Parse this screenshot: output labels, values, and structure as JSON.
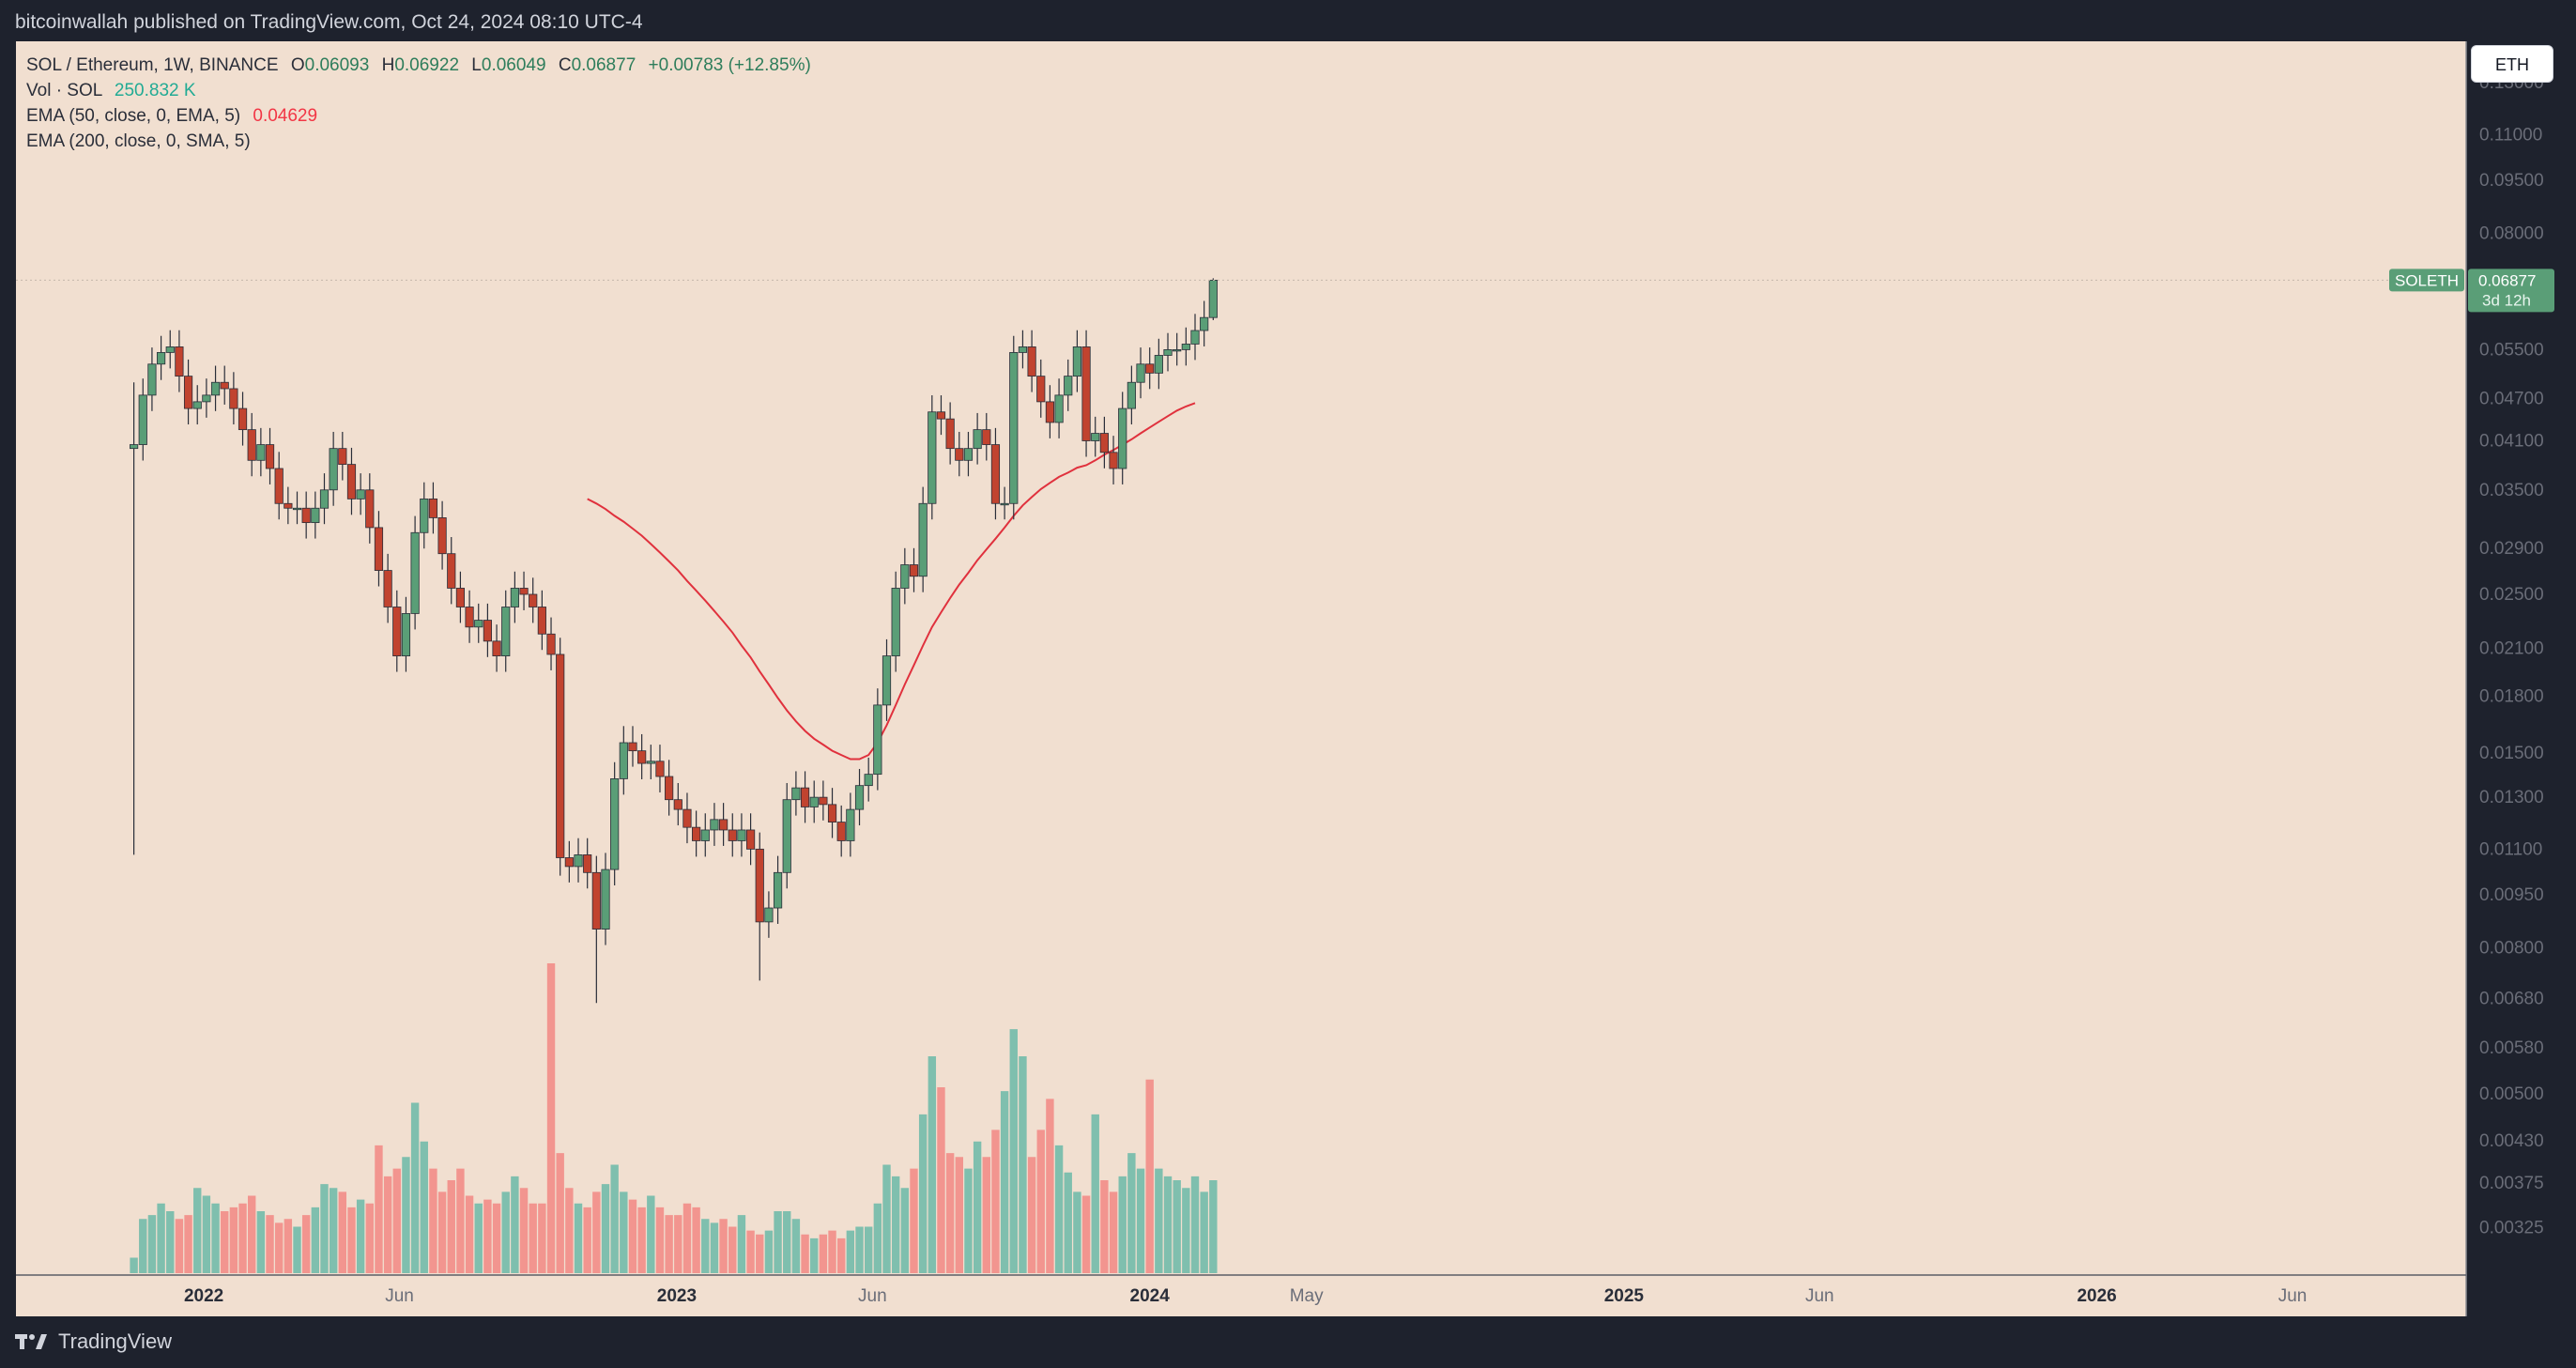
{
  "header": {
    "publisher_text": "bitcoinwallah published on TradingView.com, Oct 24, 2024 08:10 UTC-4"
  },
  "footer": {
    "brand": "TradingView"
  },
  "legend": {
    "symbol": "SOL / Ethereum, 1W, BINANCE",
    "open_label": "O",
    "open": "0.06093",
    "high_label": "H",
    "high": "0.06922",
    "low_label": "L",
    "low": "0.06049",
    "close_label": "C",
    "close": "0.06877",
    "change": "+0.00783 (+12.85%)",
    "vol_label": "Vol · SOL",
    "vol_value": "250.832 K",
    "ema50_label": "EMA (50, close, 0, EMA, 5)",
    "ema50_value": "0.04629",
    "ema200_label": "EMA (200, close, 0, SMA, 5)"
  },
  "currency_button": "ETH",
  "price_tag": {
    "symbol": "SOLETH",
    "price": "0.06877",
    "countdown": "3d 12h"
  },
  "colors": {
    "up": "#5a9e77",
    "down": "#c1432f",
    "vol_up": "#7fbfae",
    "vol_down": "#f2958f",
    "ema": "#e0313d",
    "background": "#f1dfd0",
    "price_tag_bg": "#5a9e77"
  },
  "chart_data": {
    "type": "candlestick",
    "title": "SOL / Ethereum, 1W, BINANCE",
    "y_scale": "log",
    "ylim": [
      0.0029,
      0.145
    ],
    "y_ticks": [
      "0.13000",
      "0.11000",
      "0.09500",
      "0.08000",
      "0.05500",
      "0.04700",
      "0.04100",
      "0.03500",
      "0.02900",
      "0.02500",
      "0.02100",
      "0.01800",
      "0.01500",
      "0.01300",
      "0.01100",
      "0.00950",
      "0.00800",
      "0.00680",
      "0.00580",
      "0.00500",
      "0.00430",
      "0.00375",
      "0.00325"
    ],
    "x_ticks": [
      "2022",
      "Jun",
      "2023",
      "Jun",
      "2024",
      "May",
      "2025",
      "Jun",
      "2026",
      "Jun"
    ],
    "x_tick_dates": [
      "2022-01-01",
      "2022-06-01",
      "2023-01-01",
      "2023-06-01",
      "2024-01-01",
      "2024-05-01",
      "2025-01-01",
      "2025-06-01",
      "2026-01-01",
      "2026-06-01"
    ],
    "xlim": [
      "2021-08-09",
      "2026-10-13"
    ],
    "interval": "1W",
    "first_bar_date": "2021-11-08",
    "closes": [
      0.0405,
      0.0475,
      0.0525,
      0.0545,
      0.0555,
      0.0505,
      0.0455,
      0.0465,
      0.0475,
      0.0495,
      0.0485,
      0.0455,
      0.0425,
      0.0385,
      0.0405,
      0.0375,
      0.0335,
      0.033,
      0.033,
      0.0315,
      0.033,
      0.035,
      0.04,
      0.038,
      0.034,
      0.035,
      0.031,
      0.027,
      0.024,
      0.0205,
      0.0235,
      0.0305,
      0.034,
      0.032,
      0.0285,
      0.0255,
      0.024,
      0.0225,
      0.023,
      0.0215,
      0.0205,
      0.024,
      0.0255,
      0.025,
      0.024,
      0.022,
      0.0206,
      0.0107,
      0.0104,
      0.0108,
      0.0102,
      0.0085,
      0.0103,
      0.0138,
      0.0155,
      0.0151,
      0.0145,
      0.0146,
      0.0139,
      0.0129,
      0.0125,
      0.0118,
      0.0113,
      0.0117,
      0.0121,
      0.0117,
      0.0113,
      0.0117,
      0.011,
      0.0087,
      0.0091,
      0.0102,
      0.0129,
      0.0134,
      0.0126,
      0.013,
      0.0127,
      0.012,
      0.0113,
      0.0125,
      0.0135,
      0.014,
      0.0175,
      0.0205,
      0.0255,
      0.0275,
      0.0265,
      0.0335,
      0.045,
      0.044,
      0.04,
      0.0385,
      0.04,
      0.0425,
      0.0405,
      0.0335,
      0.0335,
      0.0545,
      0.0555,
      0.0505,
      0.0465,
      0.0435,
      0.0475,
      0.0505,
      0.0555,
      0.041,
      0.042,
      0.0395,
      0.0375,
      0.0455,
      0.0495,
      0.0525,
      0.051,
      0.054,
      0.055,
      0.055,
      0.056,
      0.0585,
      0.061,
      0.0688
    ],
    "ema50": [
      null,
      null,
      null,
      null,
      null,
      null,
      null,
      null,
      null,
      null,
      null,
      null,
      null,
      null,
      null,
      null,
      null,
      null,
      null,
      null,
      null,
      null,
      null,
      null,
      null,
      null,
      null,
      null,
      null,
      null,
      null,
      null,
      null,
      null,
      null,
      null,
      null,
      null,
      null,
      null,
      null,
      null,
      null,
      null,
      null,
      null,
      null,
      null,
      null,
      null,
      0.034,
      0.0335,
      0.0329,
      0.0322,
      0.0316,
      0.0309,
      0.0302,
      0.0294,
      0.0286,
      0.0278,
      0.027,
      0.0261,
      0.0253,
      0.0245,
      0.0237,
      0.0229,
      0.0221,
      0.0212,
      0.0204,
      0.0195,
      0.0187,
      0.0179,
      0.0172,
      0.0166,
      0.0161,
      0.0157,
      0.0154,
      0.0151,
      0.0149,
      0.0147,
      0.0147,
      0.0149,
      0.0155,
      0.0164,
      0.0175,
      0.0187,
      0.0199,
      0.0212,
      0.0225,
      0.0236,
      0.0247,
      0.0258,
      0.0268,
      0.0279,
      0.0289,
      0.0299,
      0.031,
      0.0322,
      0.0333,
      0.0342,
      0.0351,
      0.0358,
      0.0365,
      0.037,
      0.0376,
      0.0379,
      0.0385,
      0.0392,
      0.0398,
      0.0405,
      0.0412,
      0.042,
      0.0428,
      0.0436,
      0.0444,
      0.0452,
      0.0458,
      0.0463
    ],
    "volume_note": "volume shown as bars colored by candle direction",
    "volume": [
      4,
      14,
      15,
      18,
      16,
      14,
      15,
      22,
      20,
      18,
      16,
      17,
      18,
      20,
      16,
      15,
      13,
      14,
      12,
      15,
      17,
      23,
      22,
      21,
      17,
      19,
      18,
      33,
      25,
      27,
      30,
      44,
      34,
      27,
      21,
      24,
      27,
      20,
      18,
      19,
      18,
      21,
      25,
      22,
      18,
      18,
      80,
      31,
      22,
      18,
      17,
      21,
      23,
      28,
      21,
      19,
      17,
      20,
      17,
      15,
      15,
      18,
      17,
      14,
      13,
      14,
      12,
      15,
      11,
      10,
      11,
      16,
      16,
      14,
      10,
      9,
      10,
      11,
      9,
      11,
      12,
      12,
      18,
      28,
      25,
      22,
      27,
      41,
      56,
      48,
      31,
      30,
      27,
      34,
      30,
      37,
      47,
      63,
      56,
      30,
      37,
      45,
      33,
      26,
      21,
      20,
      41,
      24,
      21,
      25,
      31,
      27,
      50,
      27,
      25,
      24,
      22,
      25,
      21,
      24,
      20
    ]
  }
}
